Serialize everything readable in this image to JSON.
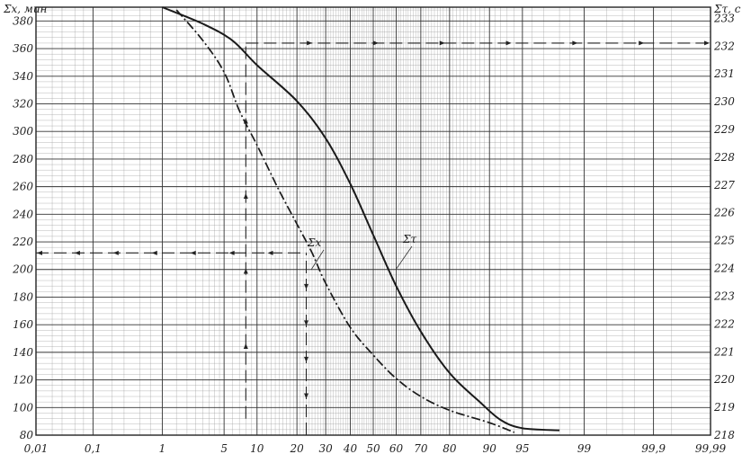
{
  "chart_data": {
    "type": "line",
    "x_scale": "probability",
    "grid": true,
    "x_ticks": [
      {
        "value": 0.01,
        "label": "0,01"
      },
      {
        "value": 0.1,
        "label": "0,1"
      },
      {
        "value": 1,
        "label": "1"
      },
      {
        "value": 5,
        "label": "5"
      },
      {
        "value": 10,
        "label": "10"
      },
      {
        "value": 20,
        "label": "20"
      },
      {
        "value": 30,
        "label": "30"
      },
      {
        "value": 40,
        "label": "40"
      },
      {
        "value": 50,
        "label": "50"
      },
      {
        "value": 60,
        "label": "60"
      },
      {
        "value": 70,
        "label": "70"
      },
      {
        "value": 80,
        "label": "80"
      },
      {
        "value": 90,
        "label": "90"
      },
      {
        "value": 95,
        "label": "95"
      },
      {
        "value": 99,
        "label": "99"
      },
      {
        "value": 99.9,
        "label": "99,9"
      },
      {
        "value": 99.99,
        "label": "99,99"
      }
    ],
    "y_left": {
      "label": "Σx, мин",
      "ylim": [
        80,
        390
      ],
      "ticks": [
        80,
        100,
        120,
        140,
        160,
        180,
        200,
        220,
        240,
        260,
        280,
        300,
        320,
        340,
        360,
        380
      ]
    },
    "y_right": {
      "label": "Στ, с",
      "ylim": [
        218,
        233.4
      ],
      "ticks": [
        218,
        219,
        220,
        221,
        222,
        223,
        224,
        225,
        226,
        227,
        228,
        229,
        230,
        231,
        232,
        233
      ]
    },
    "series": [
      {
        "name": "Σx",
        "axis": "left",
        "points": [
          [
            1.5,
            388
          ],
          [
            3,
            366
          ],
          [
            5,
            343
          ],
          [
            7,
            315
          ],
          [
            10,
            290
          ],
          [
            15,
            257
          ],
          [
            20,
            233
          ],
          [
            25,
            212
          ],
          [
            30,
            190
          ],
          [
            40,
            158
          ],
          [
            50,
            138
          ],
          [
            60,
            121
          ],
          [
            70,
            108
          ],
          [
            80,
            98
          ],
          [
            90,
            89
          ],
          [
            94,
            82
          ]
        ]
      },
      {
        "name": "Στ",
        "axis": "left",
        "points": [
          [
            1,
            390
          ],
          [
            3,
            378
          ],
          [
            6,
            366
          ],
          [
            10,
            348
          ],
          [
            20,
            322
          ],
          [
            30,
            295
          ],
          [
            40,
            262
          ],
          [
            50,
            225
          ],
          [
            60,
            188
          ],
          [
            70,
            155
          ],
          [
            80,
            125
          ],
          [
            88,
            104
          ],
          [
            92,
            91
          ],
          [
            95,
            85
          ],
          [
            98,
            83.5
          ]
        ]
      }
    ],
    "annotations": [
      {
        "type": "hline",
        "axis": "left",
        "y": 212,
        "x_range": [
          0.01,
          23
        ],
        "arrow": "left"
      },
      {
        "type": "hline",
        "axis": "left",
        "y": 364,
        "x_range": [
          8,
          99.99
        ],
        "arrow": "right"
      },
      {
        "type": "vline",
        "x": 8,
        "y_range": [
          92,
          364
        ],
        "arrow": "up"
      },
      {
        "type": "vline",
        "x": 23,
        "y_range": [
          80,
          212
        ],
        "arrow": "down"
      }
    ]
  }
}
